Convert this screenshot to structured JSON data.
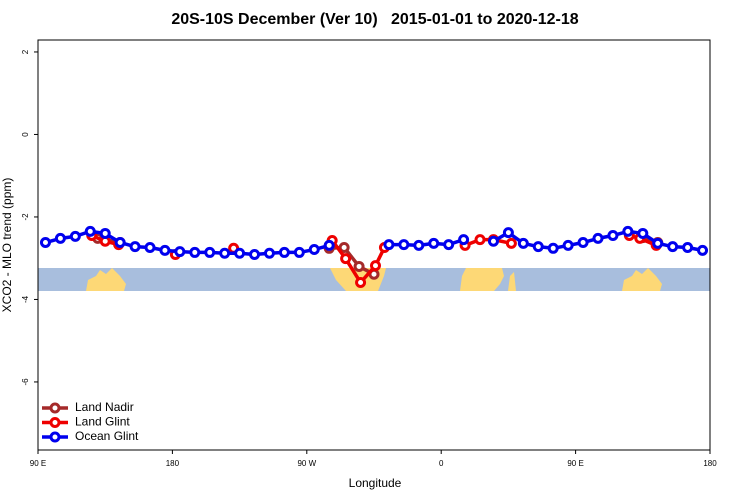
{
  "chart_data": {
    "type": "line",
    "title": "20S-10S December (Ver 10)   2015-01-01 to 2020-12-18",
    "x_label": "Longitude",
    "y_label": "XCO2 - MLO trend (ppm)",
    "xlim": [
      90,
      540
    ],
    "ylim": [
      -7.65,
      2.29
    ],
    "xticks": [
      {
        "value": 90,
        "label": "90 E"
      },
      180,
      {
        "value": 270,
        "label": "90 W"
      },
      {
        "value": 360,
        "label": "0"
      },
      {
        "value": 450,
        "label": "90 E"
      },
      {
        "value": 540,
        "label": "180"
      }
    ],
    "yticks": [
      2,
      0,
      -2,
      -4,
      -6
    ],
    "legend": "bottom-left",
    "series": [
      {
        "name": "Land Nadir",
        "color": "#a52a2a",
        "x": [
          130,
          145,
          null,
          285,
          295,
          305,
          315,
          null,
          495,
          505
        ],
        "values": [
          -2.52,
          -2.62,
          null,
          -2.76,
          -2.74,
          -3.2,
          -3.39,
          null,
          -2.5,
          -2.62
        ]
      },
      {
        "name": "Land Glint",
        "color": "#ee0000",
        "x": [
          126,
          135,
          144,
          null,
          182,
          null,
          221,
          null,
          287,
          296,
          306,
          316,
          322,
          null,
          376,
          386,
          395,
          407,
          null,
          486,
          493,
          504
        ],
        "values": [
          -2.45,
          -2.59,
          -2.67,
          null,
          -2.91,
          null,
          -2.76,
          null,
          -2.57,
          -3.01,
          -3.59,
          -3.18,
          -2.74,
          null,
          -2.69,
          -2.55,
          -2.55,
          -2.64,
          null,
          -2.45,
          -2.52,
          -2.69
        ]
      },
      {
        "name": "Ocean Glint",
        "color": "#0000ee",
        "x": [
          95,
          105,
          115,
          125,
          135,
          145,
          155,
          165,
          175,
          185,
          195,
          205,
          215,
          225,
          235,
          245,
          255,
          265,
          275,
          285,
          null,
          325,
          335,
          345,
          355,
          365,
          375,
          null,
          395,
          405,
          415,
          425,
          435,
          445,
          455,
          465,
          475,
          485,
          495,
          505,
          515,
          525,
          535
        ],
        "values": [
          -2.62,
          -2.52,
          -2.47,
          -2.35,
          -2.4,
          -2.62,
          -2.72,
          -2.74,
          -2.81,
          -2.84,
          -2.86,
          -2.86,
          -2.88,
          -2.88,
          -2.91,
          -2.88,
          -2.86,
          -2.86,
          -2.79,
          -2.69,
          null,
          -2.67,
          -2.67,
          -2.69,
          -2.64,
          -2.67,
          -2.55,
          null,
          -2.59,
          -2.38,
          -2.64,
          -2.72,
          -2.76,
          -2.69,
          -2.62,
          -2.52,
          -2.45,
          -2.35,
          -2.4,
          -2.64,
          -2.72,
          -2.74,
          -2.81
        ]
      }
    ]
  }
}
